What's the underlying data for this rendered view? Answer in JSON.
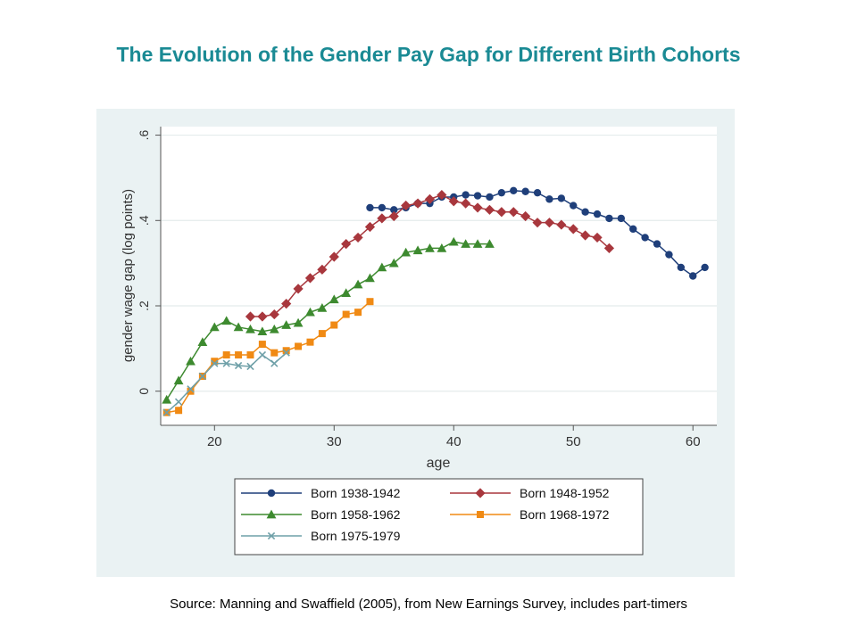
{
  "title": "The Evolution of the Gender Pay Gap for Different Birth Cohorts",
  "source": "Source: Manning and Swaffield (2005), from New Earnings Survey, includes part-timers",
  "chart_data": {
    "type": "line",
    "xlabel": "age",
    "ylabel": "gender wage gap (log points)",
    "xlim": [
      15.5,
      62
    ],
    "ylim": [
      -0.08,
      0.62
    ],
    "xticks": [
      20,
      30,
      40,
      50,
      60
    ],
    "yticks": [
      0,
      0.2,
      0.4,
      0.6
    ],
    "xtick_labels": [
      "20",
      "30",
      "40",
      "50",
      "60"
    ],
    "ytick_labels": [
      "0",
      ".2",
      ".4",
      ".6"
    ],
    "grid": true,
    "legend_position": "bottom",
    "series": [
      {
        "name": "Born 1938-1942",
        "color": "#1f3f7a",
        "marker": "circle",
        "x": [
          33,
          34,
          35,
          36,
          37,
          38,
          39,
          40,
          41,
          42,
          43,
          44,
          45,
          46,
          47,
          48,
          49,
          50,
          51,
          52,
          53,
          54,
          55,
          56,
          57,
          58,
          59,
          60,
          61
        ],
        "y": [
          0.43,
          0.43,
          0.425,
          0.43,
          0.44,
          0.44,
          0.455,
          0.455,
          0.46,
          0.458,
          0.455,
          0.465,
          0.47,
          0.468,
          0.465,
          0.45,
          0.452,
          0.435,
          0.42,
          0.415,
          0.405,
          0.405,
          0.38,
          0.36,
          0.345,
          0.32,
          0.29,
          0.27,
          0.29
        ]
      },
      {
        "name": "Born 1948-1952",
        "color": "#a8373d",
        "marker": "diamond",
        "x": [
          23,
          24,
          25,
          26,
          27,
          28,
          29,
          30,
          31,
          32,
          33,
          34,
          35,
          36,
          37,
          38,
          39,
          40,
          41,
          42,
          43,
          44,
          45,
          46,
          47,
          48,
          49,
          50,
          51,
          52,
          53
        ],
        "y": [
          0.175,
          0.175,
          0.18,
          0.205,
          0.24,
          0.265,
          0.285,
          0.315,
          0.345,
          0.36,
          0.385,
          0.405,
          0.41,
          0.435,
          0.44,
          0.45,
          0.46,
          0.445,
          0.44,
          0.43,
          0.425,
          0.42,
          0.42,
          0.41,
          0.395,
          0.395,
          0.39,
          0.38,
          0.365,
          0.36,
          0.335
        ]
      },
      {
        "name": "Born 1958-1962",
        "color": "#3d8a2f",
        "marker": "triangle",
        "x": [
          16,
          17,
          18,
          19,
          20,
          21,
          22,
          23,
          24,
          25,
          26,
          27,
          28,
          29,
          30,
          31,
          32,
          33,
          34,
          35,
          36,
          37,
          38,
          39,
          40,
          41,
          42,
          43
        ],
        "y": [
          -0.02,
          0.025,
          0.07,
          0.115,
          0.15,
          0.165,
          0.15,
          0.145,
          0.14,
          0.145,
          0.155,
          0.16,
          0.185,
          0.195,
          0.215,
          0.23,
          0.25,
          0.265,
          0.29,
          0.3,
          0.325,
          0.33,
          0.335,
          0.335,
          0.35,
          0.345,
          0.345,
          0.345
        ]
      },
      {
        "name": "Born 1968-1972",
        "color": "#f08a14",
        "marker": "square",
        "x": [
          16,
          17,
          18,
          19,
          20,
          21,
          22,
          23,
          24,
          25,
          26,
          27,
          28,
          29,
          30,
          31,
          32,
          33
        ],
        "y": [
          -0.05,
          -0.045,
          0.0,
          0.035,
          0.07,
          0.085,
          0.085,
          0.085,
          0.11,
          0.09,
          0.095,
          0.105,
          0.115,
          0.135,
          0.155,
          0.18,
          0.185,
          0.21
        ]
      },
      {
        "name": "Born 1975-1979",
        "color": "#6fa0a8",
        "marker": "x",
        "x": [
          16,
          17,
          18,
          19,
          20,
          21,
          22,
          23,
          24,
          25,
          26
        ],
        "y": [
          -0.05,
          -0.025,
          0.005,
          0.035,
          0.065,
          0.065,
          0.06,
          0.058,
          0.085,
          0.065,
          0.09
        ]
      }
    ]
  }
}
